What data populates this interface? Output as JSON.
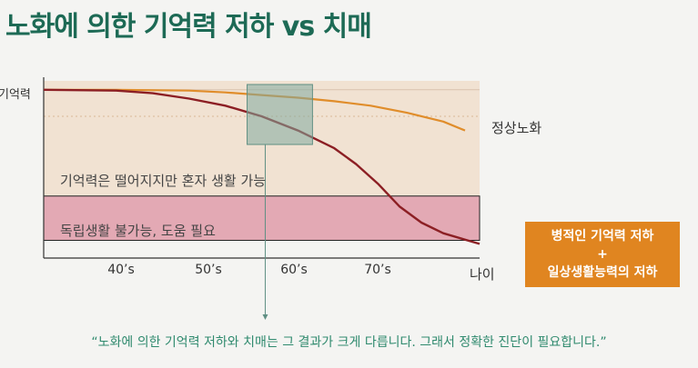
{
  "title": "노화에 의한 기억력 저하 vs 치매",
  "colors": {
    "title": "#1d6a55",
    "normal_aging": "#e08d2b",
    "dementia": "#8c1f24",
    "normal_zone": "#f1e2d2",
    "dependent_zone": "#e3a9b4",
    "highlight_box": "#7fa99e",
    "callout_bg": "#e08520",
    "quote": "#2f8a6e"
  },
  "zones": {
    "independent_label": "기억력은 떨어지지만 혼자 생활 가능",
    "dependent_label": "독립생활 불가능, 도움 필요"
  },
  "callout": {
    "line1": "병적인 기억력 저하",
    "plus": "+",
    "line2": "일상생활능력의 저하"
  },
  "quote": "“노화에 의한 기억력 저하와 치매는 그 결과가 크게 다릅니다. 그래서 정확한 진단이 필요합니다.”",
  "chart_data": {
    "type": "line",
    "title": "노화에 의한 기억력 저하 vs 치매",
    "ylabel": "기억력",
    "xlabel": "나이",
    "x_ticks": [
      "40’s",
      "50’s",
      "60’s",
      "70’s"
    ],
    "xlim": [
      30,
      90
    ],
    "ylim": [
      0,
      100
    ],
    "normal_zone_range": [
      35,
      100
    ],
    "dependent_zone_range": [
      10,
      35
    ],
    "highlight_age_range": [
      58,
      67
    ],
    "series": [
      {
        "name": "정상노화",
        "x": [
          30,
          40,
          50,
          55,
          60,
          65,
          70,
          75,
          80,
          85,
          88
        ],
        "y": [
          95,
          95,
          94.5,
          93.5,
          92,
          90.5,
          88.5,
          86,
          82,
          77,
          72
        ]
      },
      {
        "name": "치매",
        "x": [
          30,
          40,
          45,
          50,
          55,
          60,
          65,
          70,
          73,
          76,
          79,
          82,
          85,
          90
        ],
        "y": [
          95,
          94.5,
          93,
          90,
          86,
          80,
          72,
          62,
          53,
          42,
          29,
          20,
          14,
          8
        ]
      }
    ]
  }
}
